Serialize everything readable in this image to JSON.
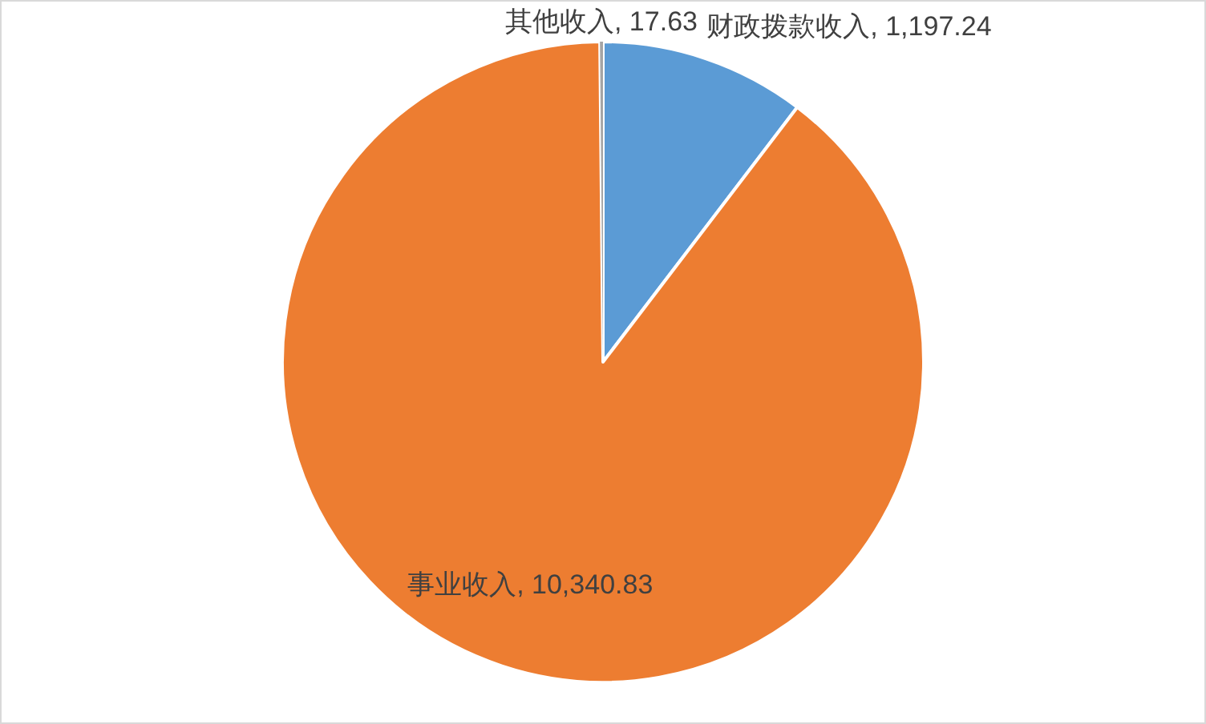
{
  "chart_data": {
    "type": "pie",
    "categories": [
      "财政拨款收入",
      "事业收入",
      "其他收入"
    ],
    "values": [
      1197.24,
      10340.83,
      17.63
    ],
    "value_labels": [
      "1,197.24",
      "10,340.83",
      "17.63"
    ],
    "colors": [
      "#5b9bd5",
      "#ed7d31",
      "#a5a5a5"
    ]
  }
}
